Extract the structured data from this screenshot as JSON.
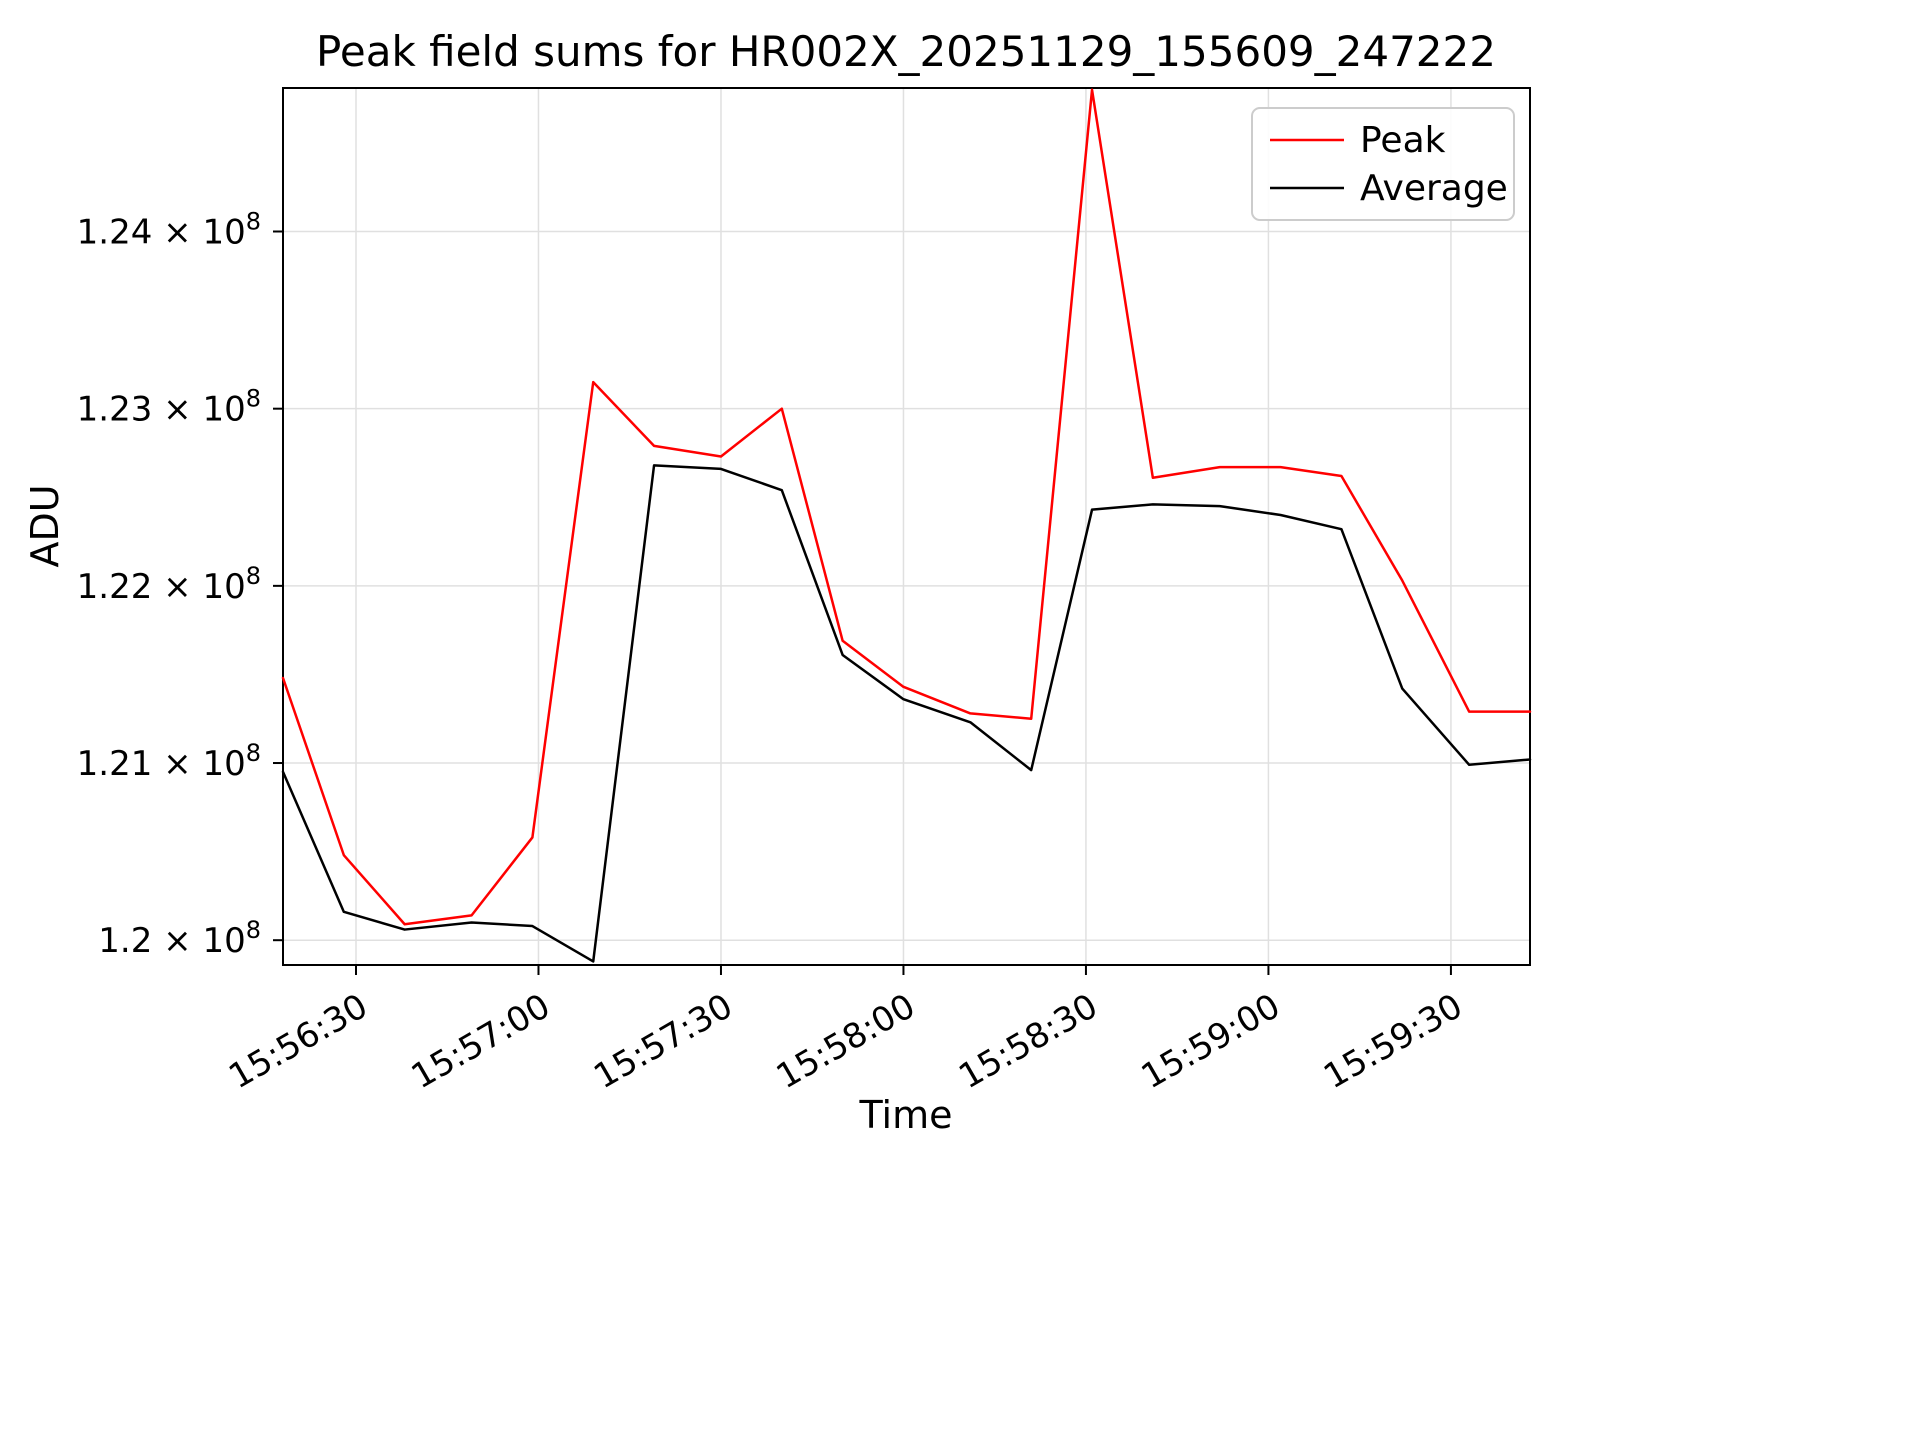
{
  "chart_data": {
    "type": "line",
    "title": "Peak field sums for HR002X_20251129_155609_247222",
    "xlabel": "Time",
    "ylabel": "ADU",
    "grid": true,
    "legend_position": "upper right",
    "x": [
      "15:56:18",
      "15:56:28",
      "15:56:38",
      "15:56:49",
      "15:56:59",
      "15:57:09",
      "15:57:19",
      "15:57:30",
      "15:57:40",
      "15:57:50",
      "15:58:00",
      "15:58:11",
      "15:58:21",
      "15:58:31",
      "15:58:41",
      "15:58:52",
      "15:59:02",
      "15:59:12",
      "15:59:22",
      "15:59:33",
      "15:59:43"
    ],
    "series": [
      {
        "name": "Peak",
        "color": "#ff0000",
        "values": [
          121480000,
          120480000,
          120090000,
          120140000,
          120580000,
          123150000,
          122790000,
          122730000,
          123000000,
          121690000,
          121430000,
          121280000,
          121250000,
          124800000,
          122610000,
          122670000,
          122670000,
          122620000,
          122030000,
          121290000,
          121290000
        ]
      },
      {
        "name": "Average",
        "color": "#000000",
        "values": [
          120950000,
          120160000,
          120060000,
          120100000,
          120080000,
          119880000,
          122680000,
          122660000,
          122540000,
          121610000,
          121360000,
          121230000,
          120960000,
          122430000,
          122460000,
          122450000,
          122400000,
          122320000,
          121420000,
          120990000,
          121020000
        ]
      }
    ],
    "ylim": [
      119860000,
      124810000
    ],
    "yticks": {
      "values": [
        120000000,
        121000000,
        122000000,
        123000000,
        124000000
      ],
      "labels": [
        "1.2 × 10^8",
        "1.21 × 10^8",
        "1.22 × 10^8",
        "1.23 × 10^8",
        "1.24 × 10^8"
      ]
    },
    "xticks": [
      "15:56:30",
      "15:57:00",
      "15:57:30",
      "15:58:00",
      "15:58:30",
      "15:59:00",
      "15:59:30"
    ]
  }
}
